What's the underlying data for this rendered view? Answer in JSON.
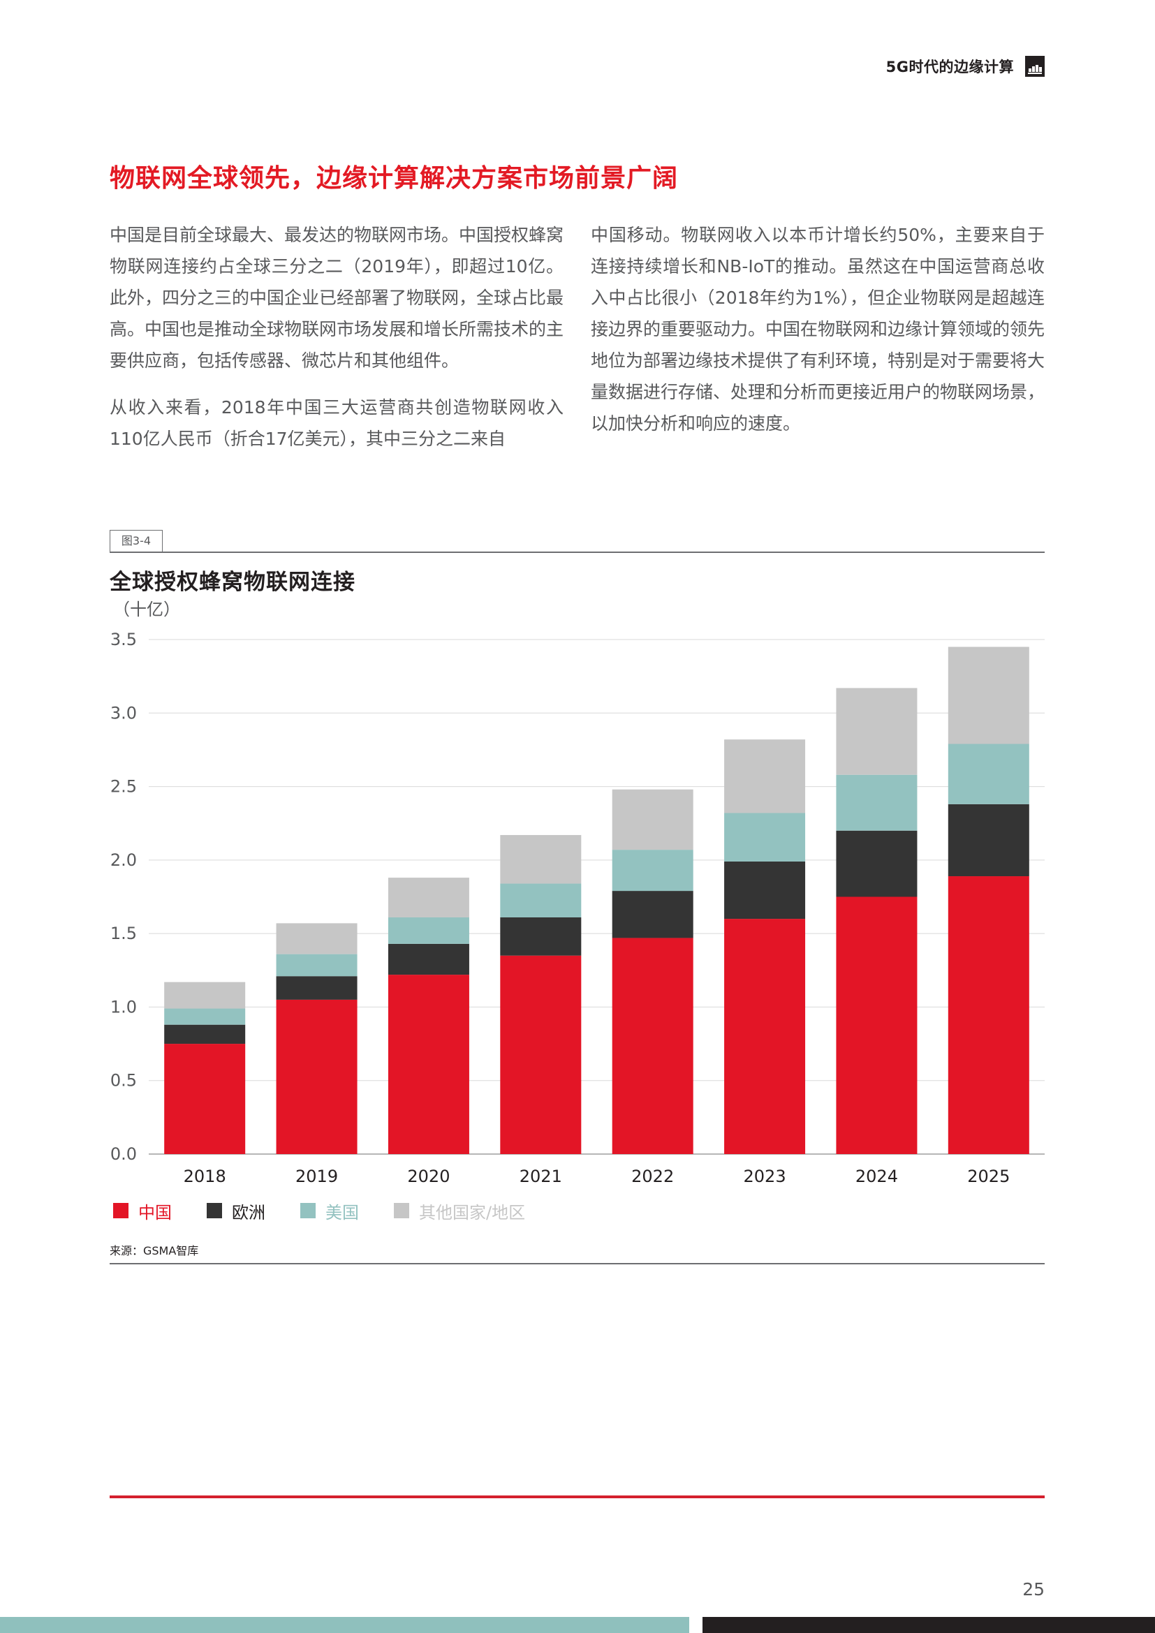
{
  "header": {
    "title": "5G时代的边缘计算",
    "logo_icon": "gsma-logo-icon"
  },
  "section": {
    "title": "物联网全球领先，边缘计算解决方案市场前景广阔"
  },
  "body": {
    "left_paragraphs": [
      "中国是目前全球最大、最发达的物联网市场。中国授权蜂窝物联网连接约占全球三分之二（2019年），即超过10亿。此外，四分之三的中国企业已经部署了物联网，全球占比最高。中国也是推动全球物联网市场发展和增长所需技术的主要供应商，包括传感器、微芯片和其他组件。",
      "从收入来看，2018年中国三大运营商共创造物联网收入110亿人民币（折合17亿美元），其中三分之二来自"
    ],
    "right_paragraphs": [
      "中国移动。物联网收入以本币计增长约50%，主要来自于连接持续增长和NB-IoT的推动。虽然这在中国运营商总收入中占比很小（2018年约为1%），但企业物联网是超越连接边界的重要驱动力。中国在物联网和边缘计算领域的领先地位为部署边缘技术提供了有利环境，特别是对于需要将大量数据进行存储、处理和分析而更接近用户的物联网场景，以加快分析和响应的速度。"
    ]
  },
  "figure": {
    "label": "图3-4",
    "source": "来源：GSMA智库"
  },
  "chart_data": {
    "type": "bar",
    "stacked": true,
    "title": "全球授权蜂窝物联网连接",
    "unit": "（十亿）",
    "categories": [
      "2018",
      "2019",
      "2020",
      "2021",
      "2022",
      "2023",
      "2024",
      "2025"
    ],
    "series": [
      {
        "name": "中国",
        "color": "#e31526",
        "values": [
          0.75,
          1.05,
          1.22,
          1.35,
          1.47,
          1.6,
          1.75,
          1.89
        ]
      },
      {
        "name": "欧洲",
        "color": "#343434",
        "values": [
          0.13,
          0.16,
          0.21,
          0.26,
          0.32,
          0.39,
          0.45,
          0.49
        ]
      },
      {
        "name": "美国",
        "color": "#93c2c0",
        "values": [
          0.11,
          0.15,
          0.18,
          0.23,
          0.28,
          0.33,
          0.38,
          0.41
        ]
      },
      {
        "name": "其他国家/地区",
        "color": "#c6c6c6",
        "values": [
          0.18,
          0.21,
          0.27,
          0.33,
          0.41,
          0.5,
          0.59,
          0.66
        ]
      }
    ],
    "yticks": [
      "0.0",
      "0.5",
      "1.0",
      "1.5",
      "2.0",
      "2.5",
      "3.0",
      "3.5"
    ],
    "ylim": [
      0,
      3.5
    ],
    "grid": true,
    "legend_position": "bottom-left"
  },
  "footer": {
    "page_number": "25"
  }
}
